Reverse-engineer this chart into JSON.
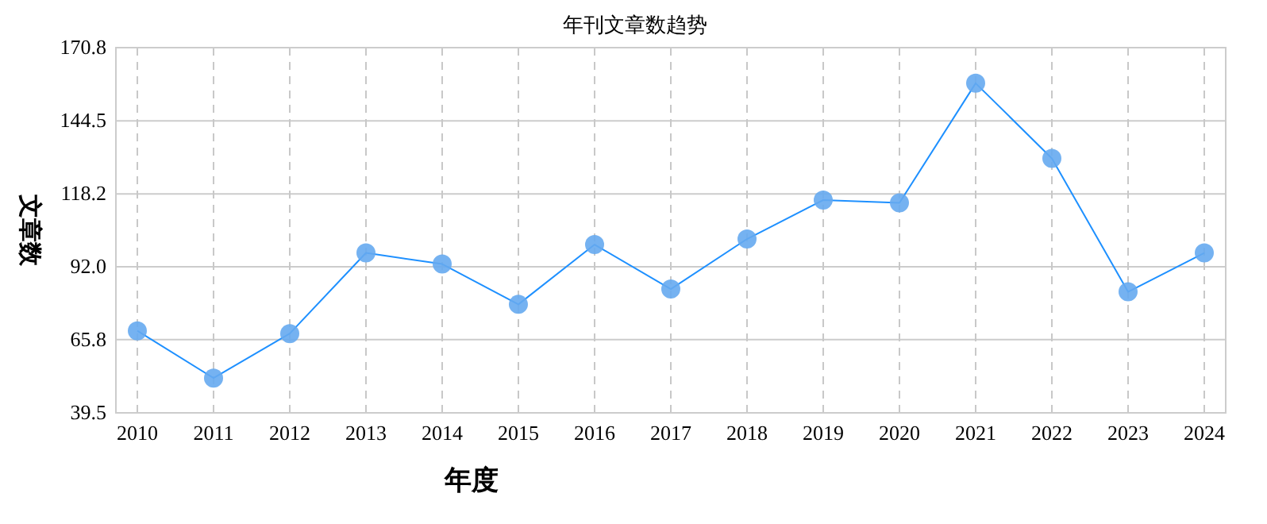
{
  "chart_data": {
    "type": "line",
    "title": "年刊文章数趋势",
    "xlabel": "年度",
    "ylabel": "文章数",
    "categories": [
      "2010",
      "2011",
      "2012",
      "2013",
      "2014",
      "2015",
      "2016",
      "2017",
      "2018",
      "2019",
      "2020",
      "2021",
      "2022",
      "2023",
      "2024"
    ],
    "series": [
      {
        "color": "#1e90ff",
        "values": [
          69,
          52,
          68,
          97,
          93,
          78.5,
          100,
          84,
          102,
          116,
          115,
          158,
          131,
          83,
          97
        ]
      }
    ],
    "ylim": [
      39.5,
      170.8
    ],
    "yticks": [
      {
        "value": 39.5,
        "label": "39.5"
      },
      {
        "value": 65.8,
        "label": "65.8"
      },
      {
        "value": 92.0,
        "label": "92.0"
      },
      {
        "value": 118.2,
        "label": "118.2"
      },
      {
        "value": 144.5,
        "label": "144.5"
      },
      {
        "value": 170.8,
        "label": "170.8"
      }
    ],
    "grid": true,
    "marker": "circle",
    "line_style": "solid"
  }
}
